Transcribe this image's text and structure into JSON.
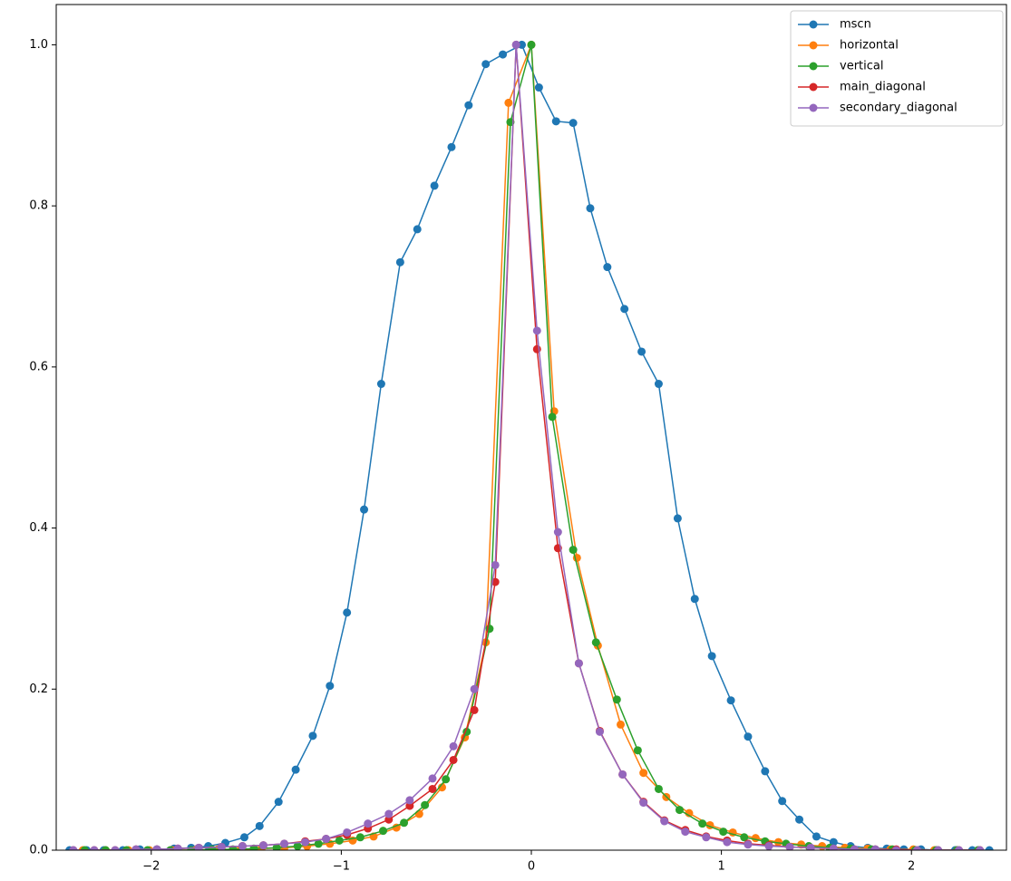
{
  "chart_data": {
    "type": "line",
    "xlim": [
      -2.5,
      2.5
    ],
    "ylim": [
      0,
      1.05
    ],
    "xticks": [
      {
        "value": -2,
        "label": "−2"
      },
      {
        "value": -1,
        "label": "−1"
      },
      0,
      1,
      2
    ],
    "yticks": [
      {
        "value": 0,
        "label": "0.0"
      },
      0.2,
      0.4,
      0.6,
      0.8,
      {
        "value": 1,
        "label": "1.0"
      }
    ],
    "legend": "upper right",
    "series": [
      {
        "name": "mscn",
        "color": "#1f77b4",
        "x": [
          -2.43,
          -2.34,
          -2.25,
          -2.15,
          -2.06,
          -1.97,
          -1.88,
          -1.79,
          -1.7,
          -1.61,
          -1.51,
          -1.43,
          -1.33,
          -1.24,
          -1.15,
          -1.06,
          -0.97,
          -0.88,
          -0.79,
          -0.69,
          -0.6,
          -0.51,
          -0.42,
          -0.33,
          -0.24,
          -0.15,
          -0.05,
          0.04,
          0.13,
          0.22,
          0.31,
          0.4,
          0.49,
          0.58,
          0.67,
          0.77,
          0.86,
          0.95,
          1.05,
          1.14,
          1.23,
          1.32,
          1.41,
          1.5,
          1.59,
          1.68,
          1.77,
          1.87,
          1.96,
          2.05,
          2.14,
          2.23,
          2.32,
          2.41
        ],
        "values": [
          0,
          0,
          0,
          0,
          0.001,
          0.001,
          0.002,
          0.003,
          0.005,
          0.009,
          0.016,
          0.03,
          0.06,
          0.1,
          0.142,
          0.204,
          0.295,
          0.423,
          0.579,
          0.73,
          0.771,
          0.825,
          0.873,
          0.925,
          0.976,
          0.988,
          1.0,
          0.947,
          0.905,
          0.903,
          0.797,
          0.724,
          0.672,
          0.619,
          0.579,
          0.412,
          0.312,
          0.241,
          0.186,
          0.141,
          0.098,
          0.061,
          0.038,
          0.017,
          0.01,
          0.005,
          0.003,
          0.002,
          0.001,
          0.001,
          0,
          0,
          0,
          0
        ]
      },
      {
        "name": "horizontal",
        "color": "#ff7f0e",
        "x": [
          -2.36,
          -2.24,
          -2.12,
          -2.01,
          -1.89,
          -1.77,
          -1.65,
          -1.53,
          -1.42,
          -1.3,
          -1.18,
          -1.06,
          -0.94,
          -0.83,
          -0.71,
          -0.59,
          -0.47,
          -0.35,
          -0.24,
          -0.12,
          0,
          0.12,
          0.24,
          0.35,
          0.47,
          0.59,
          0.71,
          0.83,
          0.94,
          1.06,
          1.18,
          1.3,
          1.42,
          1.53,
          1.65,
          1.77,
          1.89,
          2.01,
          2.12,
          2.24,
          2.36
        ],
        "values": [
          0,
          0,
          0,
          0,
          0,
          0,
          0.001,
          0.001,
          0.002,
          0.003,
          0.005,
          0.008,
          0.012,
          0.017,
          0.028,
          0.045,
          0.078,
          0.14,
          0.258,
          0.928,
          1.0,
          0.545,
          0.363,
          0.254,
          0.156,
          0.096,
          0.066,
          0.046,
          0.031,
          0.022,
          0.015,
          0.01,
          0.007,
          0.005,
          0.003,
          0.002,
          0.001,
          0.001,
          0,
          0,
          0
        ]
      },
      {
        "name": "vertical",
        "color": "#2ca02c",
        "x": [
          -2.35,
          -2.24,
          -2.13,
          -2.02,
          -1.9,
          -1.79,
          -1.68,
          -1.57,
          -1.46,
          -1.34,
          -1.23,
          -1.12,
          -1.01,
          -0.9,
          -0.78,
          -0.67,
          -0.56,
          -0.45,
          -0.34,
          -0.22,
          -0.11,
          0,
          0.11,
          0.22,
          0.34,
          0.45,
          0.56,
          0.67,
          0.78,
          0.9,
          1.01,
          1.12,
          1.23,
          1.34,
          1.46,
          1.57,
          1.68,
          1.79,
          1.9,
          2.02,
          2.13,
          2.24,
          2.35
        ],
        "values": [
          0,
          0,
          0,
          0,
          0,
          0,
          0.001,
          0.001,
          0.002,
          0.003,
          0.005,
          0.008,
          0.012,
          0.016,
          0.024,
          0.034,
          0.056,
          0.088,
          0.147,
          0.275,
          0.904,
          1.0,
          0.538,
          0.373,
          0.258,
          0.187,
          0.124,
          0.076,
          0.05,
          0.033,
          0.023,
          0.016,
          0.011,
          0.008,
          0.005,
          0.003,
          0.002,
          0.001,
          0.001,
          0,
          0,
          0,
          0
        ]
      },
      {
        "name": "main_diagonal",
        "color": "#d62728",
        "x": [
          -2.41,
          -2.3,
          -2.19,
          -2.08,
          -1.97,
          -1.86,
          -1.75,
          -1.63,
          -1.52,
          -1.41,
          -1.3,
          -1.19,
          -1.08,
          -0.97,
          -0.86,
          -0.75,
          -0.64,
          -0.52,
          -0.41,
          -0.3,
          -0.19,
          -0.08,
          0.03,
          0.14,
          0.25,
          0.36,
          0.48,
          0.59,
          0.7,
          0.81,
          0.92,
          1.03,
          1.14,
          1.25,
          1.36,
          1.47,
          1.59,
          1.7,
          1.81,
          1.92,
          2.03,
          2.14,
          2.25,
          2.36
        ],
        "values": [
          0,
          0,
          0,
          0.001,
          0.001,
          0.002,
          0.003,
          0.004,
          0.005,
          0.006,
          0.008,
          0.011,
          0.014,
          0.019,
          0.027,
          0.038,
          0.055,
          0.076,
          0.112,
          0.174,
          0.333,
          1.0,
          0.622,
          0.375,
          0.232,
          0.148,
          0.094,
          0.06,
          0.037,
          0.025,
          0.017,
          0.012,
          0.008,
          0.006,
          0.004,
          0.003,
          0.002,
          0.001,
          0.001,
          0.001,
          0,
          0,
          0,
          0
        ]
      },
      {
        "name": "secondary_diagonal",
        "color": "#9467bd",
        "x": [
          -2.41,
          -2.3,
          -2.19,
          -2.08,
          -1.97,
          -1.86,
          -1.75,
          -1.63,
          -1.52,
          -1.41,
          -1.3,
          -1.19,
          -1.08,
          -0.97,
          -0.86,
          -0.75,
          -0.64,
          -0.52,
          -0.41,
          -0.3,
          -0.19,
          -0.08,
          0.03,
          0.14,
          0.25,
          0.36,
          0.48,
          0.59,
          0.7,
          0.81,
          0.92,
          1.03,
          1.14,
          1.25,
          1.36,
          1.47,
          1.59,
          1.7,
          1.81,
          1.92,
          2.03,
          2.14,
          2.25,
          2.36
        ],
        "values": [
          0,
          0,
          0,
          0.001,
          0.001,
          0.002,
          0.003,
          0.004,
          0.005,
          0.006,
          0.008,
          0.01,
          0.014,
          0.022,
          0.033,
          0.045,
          0.062,
          0.089,
          0.129,
          0.2,
          0.354,
          1.0,
          0.645,
          0.395,
          0.232,
          0.147,
          0.094,
          0.059,
          0.036,
          0.023,
          0.016,
          0.01,
          0.007,
          0.005,
          0.004,
          0.003,
          0.002,
          0.001,
          0.001,
          0,
          0,
          0,
          0,
          0
        ]
      }
    ]
  }
}
